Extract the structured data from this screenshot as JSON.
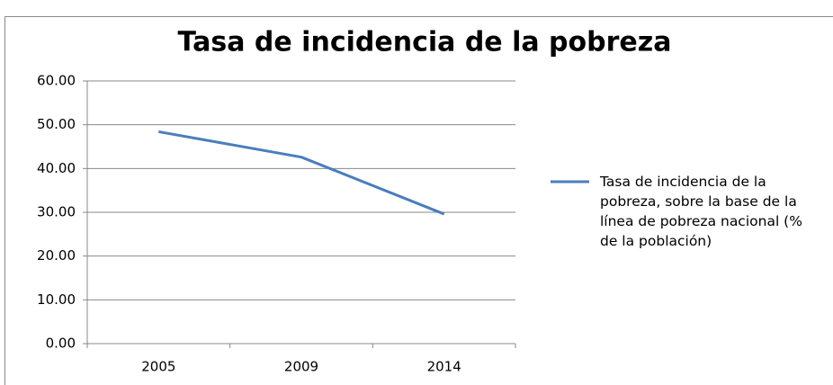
{
  "chart_data": {
    "type": "line",
    "title": "Tasa de incidencia de la pobreza",
    "categories": [
      "2005",
      "2009",
      "2014"
    ],
    "series": [
      {
        "name": "Tasa de incidencia de la pobreza, sobre la base de la línea de pobreza nacional (% de la población)",
        "color": "#4a7ebb",
        "values": [
          48.4,
          42.6,
          29.6
        ]
      }
    ],
    "ylim": [
      0,
      60
    ],
    "yticks": [
      {
        "value": 0,
        "label": "0.00"
      },
      {
        "value": 10,
        "label": "10.00"
      },
      {
        "value": 20,
        "label": "20.00"
      },
      {
        "value": 30,
        "label": "30.00"
      },
      {
        "value": 40,
        "label": "40.00"
      },
      {
        "value": 50,
        "label": "50.00"
      },
      {
        "value": 60,
        "label": "60.00"
      }
    ],
    "grid": true,
    "legend": "right"
  }
}
